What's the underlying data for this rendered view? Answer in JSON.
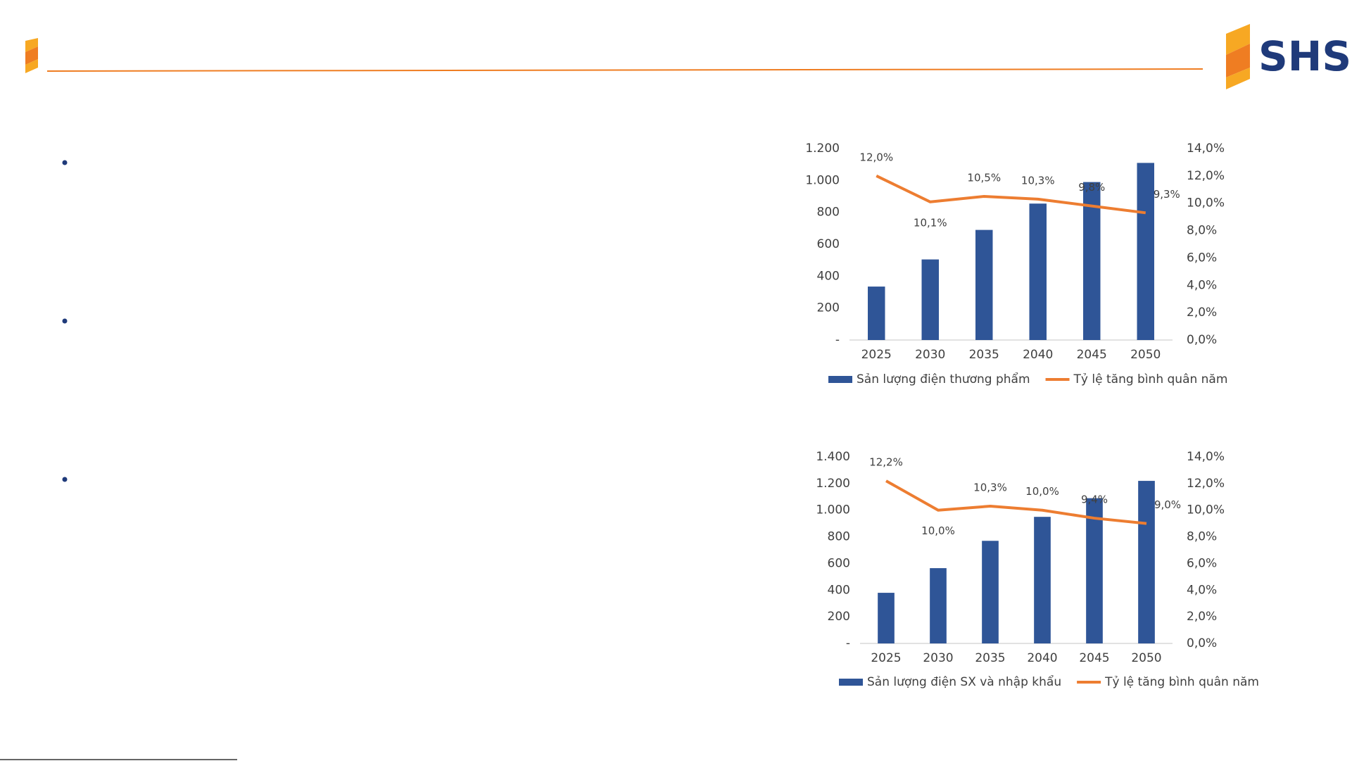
{
  "header": {
    "logo": "SHS"
  },
  "chart_data": [
    {
      "type": "bar_line",
      "categories": [
        "2025",
        "2030",
        "2035",
        "2040",
        "2045",
        "2050"
      ],
      "series": [
        {
          "name": "Sản lượng điện thương phẩm",
          "color": "#2f5597",
          "type": "bar",
          "values": [
            335,
            505,
            690,
            855,
            990,
            1110
          ]
        },
        {
          "name": "Tỷ lệ tăng bình quân năm",
          "color": "#ed7d31",
          "type": "line",
          "axis": "y2",
          "values": [
            12.0,
            10.1,
            10.5,
            10.3,
            9.8,
            9.3
          ],
          "value_labels": [
            "12,0%",
            "10,1%",
            "10,5%",
            "10,3%",
            "9,8%",
            "9,3%"
          ]
        }
      ],
      "ylim": [
        0,
        1200
      ],
      "yticks": [
        {
          "value": 0,
          "label": "-"
        },
        200,
        400,
        600,
        800,
        {
          "value": 1000,
          "label": "1.000"
        },
        {
          "value": 1200,
          "label": "1.200"
        }
      ],
      "y2lim": [
        0,
        14
      ],
      "y2ticks": [
        {
          "value": 0,
          "label": "0,0%"
        },
        {
          "value": 2,
          "label": "2,0%"
        },
        {
          "value": 4,
          "label": "4,0%"
        },
        {
          "value": 6,
          "label": "6,0%"
        },
        {
          "value": 8,
          "label": "8,0%"
        },
        {
          "value": 10,
          "label": "10,0%"
        },
        {
          "value": 12,
          "label": "12,0%"
        },
        {
          "value": 14,
          "label": "14,0%"
        }
      ],
      "legend": "bottom"
    },
    {
      "type": "bar_line",
      "categories": [
        "2025",
        "2030",
        "2035",
        "2040",
        "2045",
        "2050"
      ],
      "series": [
        {
          "name": "Sản lượng điện SX và nhập khẩu",
          "color": "#2f5597",
          "type": "bar",
          "values": [
            380,
            565,
            770,
            950,
            1090,
            1220
          ]
        },
        {
          "name": "Tỷ lệ tăng bình quân năm",
          "color": "#ed7d31",
          "type": "line",
          "axis": "y2",
          "values": [
            12.2,
            10.0,
            10.3,
            10.0,
            9.4,
            9.0
          ],
          "value_labels": [
            "12,2%",
            "10,0%",
            "10,3%",
            "10,0%",
            "9,4%",
            "9,0%"
          ]
        }
      ],
      "ylim": [
        0,
        1400
      ],
      "yticks": [
        {
          "value": 0,
          "label": "-"
        },
        200,
        400,
        600,
        800,
        {
          "value": 1000,
          "label": "1.000"
        },
        {
          "value": 1200,
          "label": "1.200"
        },
        {
          "value": 1400,
          "label": "1.400"
        }
      ],
      "y2lim": [
        0,
        14
      ],
      "y2ticks": [
        {
          "value": 0,
          "label": "0,0%"
        },
        {
          "value": 2,
          "label": "2,0%"
        },
        {
          "value": 4,
          "label": "4,0%"
        },
        {
          "value": 6,
          "label": "6,0%"
        },
        {
          "value": 8,
          "label": "8,0%"
        },
        {
          "value": 10,
          "label": "10,0%"
        },
        {
          "value": 12,
          "label": "12,0%"
        },
        {
          "value": 14,
          "label": "14,0%"
        }
      ],
      "legend": "bottom"
    }
  ]
}
